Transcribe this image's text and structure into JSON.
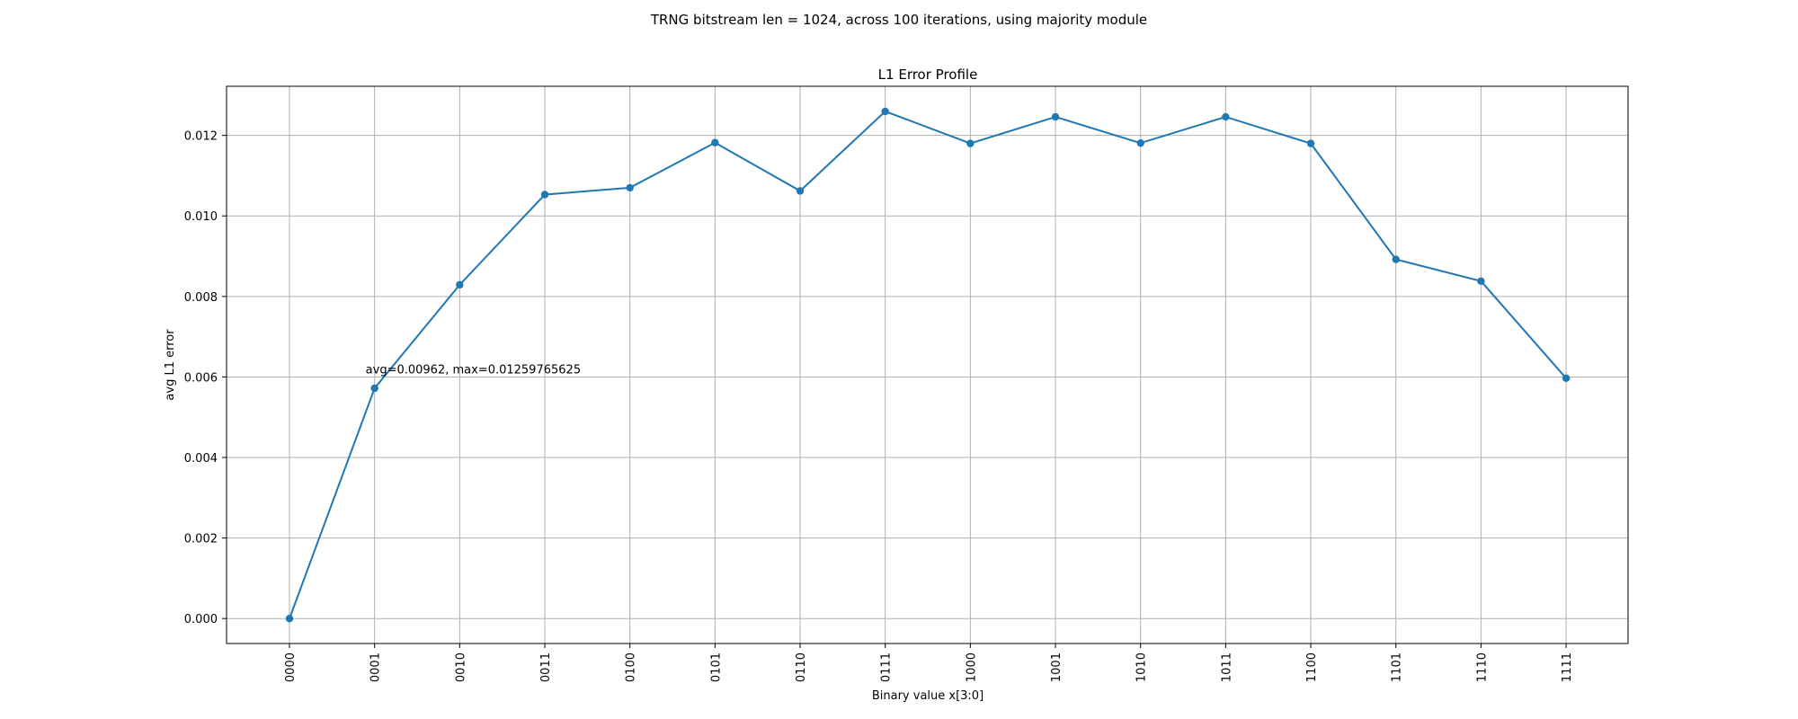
{
  "figure": {
    "suptitle": "TRNG bitstream len = 1024, across 100 iterations, using majority module"
  },
  "chart_data": {
    "type": "line",
    "title": "L1 Error Profile",
    "xlabel": "Binary value x[3:0]",
    "ylabel": "avg L1 error",
    "categories": [
      "0000",
      "0001",
      "0010",
      "0011",
      "0100",
      "0101",
      "0110",
      "0111",
      "1000",
      "1001",
      "1010",
      "1011",
      "1100",
      "1101",
      "1110",
      "1111"
    ],
    "series": [
      {
        "values": [
          0.0,
          0.00572,
          0.00829,
          0.01053,
          0.0107,
          0.01182,
          0.01062,
          0.012597,
          0.0118,
          0.01246,
          0.01181,
          0.01246,
          0.0118,
          0.00892,
          0.00838,
          0.00597
        ],
        "color": "#1f77b4",
        "marker": "circle"
      }
    ],
    "ylim": [
      -0.00062,
      0.01322
    ],
    "yticks": [
      "0.000",
      "0.002",
      "0.004",
      "0.006",
      "0.008",
      "0.010",
      "0.012"
    ],
    "ytick_values": [
      0.0,
      0.002,
      0.004,
      0.006,
      0.008,
      0.01,
      0.012
    ],
    "grid": true,
    "annotation": {
      "text": "avg=0.00962, max=0.01259765625",
      "x_category": "0001",
      "y": 0.0062
    }
  }
}
